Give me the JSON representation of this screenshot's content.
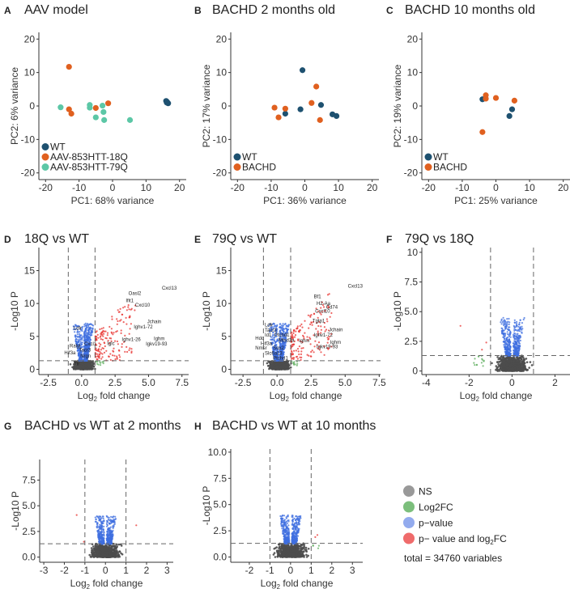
{
  "colors": {
    "wt": "#1e5170",
    "q18": "#e0601f",
    "q79": "#5cc7a6",
    "ns": "#4d4d4d",
    "fc": "#5fae5f",
    "pval": "#3f6fe0",
    "both": "#e8322f",
    "legend_ns": "#999999",
    "legend_fc": "#7cbf7c",
    "legend_pval": "#93abee",
    "legend_both": "#ef6b6b"
  },
  "chart_data": [
    {
      "id": "A",
      "type": "scatter",
      "panel_label": "A",
      "title": "AAV model",
      "xlabel": "PC1: 68% variance",
      "ylabel": "PC2: 6% variance",
      "xlim": [
        -22,
        22
      ],
      "ylim": [
        -22,
        22
      ],
      "xticks": [
        "-20",
        "-10",
        "0",
        "10",
        "20"
      ],
      "yticks": [
        "-20",
        "-10",
        "0",
        "10",
        "20"
      ],
      "grid": false,
      "legend_placement": "bottom-left",
      "series": [
        {
          "name": "WT",
          "color_key": "wt",
          "points": [
            [
              16,
              1.5
            ],
            [
              16.3,
              1.2
            ],
            [
              16.6,
              0.8
            ],
            [
              16.2,
              1.0
            ]
          ]
        },
        {
          "name": "AAV-853HTT-18Q",
          "color_key": "q18",
          "points": [
            [
              -13,
              11.7
            ],
            [
              -13,
              -1
            ],
            [
              -12.3,
              -2.3
            ],
            [
              -5,
              -0.6
            ],
            [
              -1.3,
              0.8
            ]
          ]
        },
        {
          "name": "AAV-853HTT-79Q",
          "color_key": "q79",
          "points": [
            [
              -15.5,
              -0.4
            ],
            [
              -6.8,
              0.3
            ],
            [
              -6.8,
              -0.5
            ],
            [
              -3,
              0.1
            ],
            [
              -2.7,
              -1.8
            ],
            [
              -5,
              -3.4
            ],
            [
              -2.5,
              -4.2
            ],
            [
              5.2,
              -4.2
            ]
          ]
        }
      ]
    },
    {
      "id": "B",
      "type": "scatter",
      "panel_label": "B",
      "title": "BACHD 2 months old",
      "xlabel": "PC1: 36% variance",
      "ylabel": "PC2: 17% variance",
      "xlim": [
        -22,
        22
      ],
      "ylim": [
        -22,
        22
      ],
      "xticks": [
        "-20",
        "-10",
        "0",
        "10",
        "20"
      ],
      "yticks": [
        "-20",
        "-10",
        "0",
        "10",
        "20"
      ],
      "grid": false,
      "legend_placement": "bottom-left",
      "series": [
        {
          "name": "WT",
          "color_key": "wt",
          "points": [
            [
              -0.7,
              10.7
            ],
            [
              -5.8,
              -2.3
            ],
            [
              -1.3,
              -1
            ],
            [
              4.8,
              0.3
            ],
            [
              8.2,
              -2.5
            ],
            [
              9.4,
              -3
            ]
          ]
        },
        {
          "name": "BACHD",
          "color_key": "q18",
          "points": [
            [
              -9,
              -0.5
            ],
            [
              -5.8,
              -0.8
            ],
            [
              -7.8,
              -3.4
            ],
            [
              2,
              0.9
            ],
            [
              3.4,
              5.8
            ],
            [
              4.5,
              -4.2
            ]
          ]
        }
      ]
    },
    {
      "id": "C",
      "type": "scatter",
      "panel_label": "C",
      "title": "BACHD 10 months old",
      "xlabel": "PC1: 25% variance",
      "ylabel": "PC2: 19% variance",
      "xlim": [
        -22,
        22
      ],
      "ylim": [
        -22,
        22
      ],
      "xticks": [
        "-20",
        "-10",
        "0",
        "10",
        "20"
      ],
      "yticks": [
        "-20",
        "-10",
        "0",
        "10",
        "20"
      ],
      "grid": false,
      "legend_placement": "bottom-left",
      "series": [
        {
          "name": "WT",
          "color_key": "wt",
          "points": [
            [
              -4,
              2
            ],
            [
              4,
              -3
            ],
            [
              4.8,
              -1
            ]
          ]
        },
        {
          "name": "BACHD",
          "color_key": "q18",
          "points": [
            [
              -3,
              3.2
            ],
            [
              -3,
              2.2
            ],
            [
              0,
              2.4
            ],
            [
              5.5,
              1.6
            ],
            [
              -4,
              -7.8
            ]
          ]
        }
      ]
    },
    {
      "id": "D",
      "type": "scatter",
      "subtype": "volcano",
      "panel_label": "D",
      "title": "18Q vs WT",
      "xlabel": "Log2 fold change",
      "ylabel": "-Log10 P",
      "xlim": [
        -3.2,
        8
      ],
      "ylim": [
        -0.8,
        18.5
      ],
      "xtick_values": [
        -2.5,
        0,
        2.5,
        5,
        7.5
      ],
      "xticks": [
        "-2.5",
        "0.0",
        "2.5",
        "5.0",
        "7.5"
      ],
      "ytick_values": [
        0,
        5,
        10,
        15
      ],
      "yticks": [
        "0",
        "5",
        "10",
        "15"
      ],
      "fc_cutoff": 1,
      "p_cutoff": 1.3,
      "labels": [
        [
          "Cxcl13",
          6.0,
          12.1
        ],
        [
          "Oasl2",
          3.5,
          11.3
        ],
        [
          "Ifit1",
          3.3,
          10.2
        ],
        [
          "Cxcl10",
          4.0,
          9.5
        ],
        [
          "Jchain",
          4.9,
          7.0
        ],
        [
          "Ighv1-72",
          3.9,
          6.2
        ],
        [
          "Ighv1-26",
          3.0,
          4.3
        ],
        [
          "Ighm",
          5.4,
          4.4
        ],
        [
          "Iglc",
          1.9,
          3.7
        ],
        [
          "Igkv19-93",
          4.8,
          3.6
        ],
        [
          "Ldlr",
          -0.6,
          6.0
        ],
        [
          "Ralyl",
          -0.9,
          3.3
        ],
        [
          "Hif3a",
          -1.3,
          2.3
        ],
        [
          "Cxcl1",
          0.2,
          3.6
        ],
        [
          "Tacr3",
          -0.2,
          2.7
        ],
        [
          "Nrgn",
          -0.1,
          1.8
        ],
        [
          "Ttr",
          -0.6,
          0.6
        ]
      ]
    },
    {
      "id": "E",
      "type": "scatter",
      "subtype": "volcano",
      "panel_label": "E",
      "title": "79Q vs WT",
      "xlabel": "Log2 fold change",
      "ylabel": "-Log10 P",
      "xlim": [
        -3.4,
        7.6
      ],
      "ylim": [
        -0.8,
        18.5
      ],
      "xtick_values": [
        -2.5,
        0,
        2.5,
        5,
        7.5
      ],
      "xticks": [
        "-2.5",
        "0.0",
        "2.5",
        "5.0",
        "7.5"
      ],
      "ytick_values": [
        0,
        5,
        10,
        15
      ],
      "yticks": [
        "0",
        "5",
        "10",
        "15"
      ],
      "fc_cutoff": 1,
      "p_cutoff": 1.3,
      "labels": [
        [
          "Cxcl13",
          5.2,
          12.4
        ],
        [
          "Bf1",
          2.7,
          10.8
        ],
        [
          "H2-Aa",
          2.9,
          9.8
        ],
        [
          "Cd74",
          3.6,
          9.2
        ],
        [
          "Cxcl10",
          2.8,
          8.6
        ],
        [
          "Tgtp1",
          2.6,
          7.1
        ],
        [
          "Jchain",
          3.8,
          5.8
        ],
        [
          "Ighv1-72",
          2.7,
          5.0
        ],
        [
          "Ighm",
          3.9,
          3.9
        ],
        [
          "Ighm",
          1.6,
          4.1
        ],
        [
          "Igkv19-93",
          2.9,
          3.2
        ],
        [
          "Ldlr",
          -0.9,
          6.5
        ],
        [
          "Tacr3",
          -0.9,
          5.7
        ],
        [
          "Id1",
          -0.9,
          5.0
        ],
        [
          "Ptchd1",
          -0.2,
          5.0
        ],
        [
          "Mtsd2a",
          0.1,
          4.2
        ],
        [
          "Hdc",
          -1.6,
          4.5
        ],
        [
          "Hif3a",
          -1.2,
          3.7
        ],
        [
          "Nmsr",
          -1.6,
          3.0
        ],
        [
          "Sox2",
          -0.3,
          3.0
        ],
        [
          "Slc6a13",
          -0.9,
          2.2
        ],
        [
          "Ptchd1",
          -0.3,
          1.5
        ]
      ]
    },
    {
      "id": "F",
      "type": "scatter",
      "subtype": "volcano",
      "panel_label": "F",
      "title": "79Q vs 18Q",
      "xlabel": "Log2 fold change",
      "ylabel": "-Log10 P",
      "xlim": [
        -4.2,
        2.7
      ],
      "ylim": [
        -0.3,
        10.4
      ],
      "xtick_values": [
        -4,
        -2,
        0,
        2
      ],
      "xticks": [
        "-4",
        "-2",
        "0",
        "2"
      ],
      "ytick_values": [
        0,
        2.5,
        5,
        7.5,
        10
      ],
      "yticks": [
        "0",
        "2.5",
        "5.0",
        "7.5",
        "10"
      ],
      "fc_cutoff": 1,
      "p_cutoff": 1.3,
      "labels": []
    },
    {
      "id": "G",
      "type": "scatter",
      "subtype": "volcano",
      "panel_label": "G",
      "title": "BACHD vs WT at 2 months",
      "xlabel": "Log2 fold change",
      "ylabel": "-Log10 P",
      "xlim": [
        -3.2,
        3.3
      ],
      "ylim": [
        -0.5,
        9.5
      ],
      "xtick_values": [
        -3,
        -2,
        -1,
        0,
        1,
        2,
        3
      ],
      "xticks": [
        "-3",
        "-2",
        "-1",
        "0",
        "1",
        "2",
        "3"
      ],
      "ytick_values": [
        0,
        2.5,
        5,
        7.5
      ],
      "yticks": [
        "0.0",
        "2.5",
        "5.0",
        "7.5"
      ],
      "fc_cutoff": 1,
      "p_cutoff": 1.3,
      "labels": []
    },
    {
      "id": "H",
      "type": "scatter",
      "subtype": "volcano",
      "panel_label": "H",
      "title": "BACHD vs WT at 10 months",
      "xlabel": "Log2 fold change",
      "ylabel": "-Log10 P",
      "xlim": [
        -2.9,
        3.5
      ],
      "ylim": [
        -0.5,
        10.3
      ],
      "xtick_values": [
        -2,
        -1,
        0,
        1,
        2,
        3
      ],
      "xticks": [
        "-2",
        "-1",
        "0",
        "1",
        "2",
        "3"
      ],
      "ytick_values": [
        0,
        2.5,
        5,
        7.5,
        10
      ],
      "yticks": [
        "0.0",
        "2.5",
        "5.0",
        "7.5",
        "10.0"
      ],
      "fc_cutoff": 1,
      "p_cutoff": 1.3,
      "labels": []
    }
  ],
  "volcano_legend": {
    "items": [
      {
        "label": "NS",
        "color_key": "legend_ns"
      },
      {
        "label": "Log2FC",
        "color_key": "legend_fc"
      },
      {
        "label": "p−value",
        "color_key": "legend_pval"
      },
      {
        "label": "p− value and log2FC",
        "color_key": "legend_both"
      }
    ],
    "total": "total = 34760 variables"
  }
}
